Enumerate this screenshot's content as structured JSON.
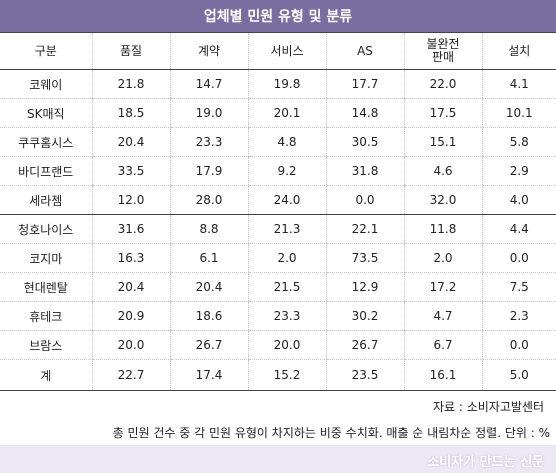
{
  "title": "업체별 민원 유형 및 분류",
  "headers": [
    "구분",
    "품질",
    "계약",
    "서비스",
    "AS",
    "불완전\n판매",
    "설치"
  ],
  "rows": [
    [
      "코웨이",
      "21.8",
      "14.7",
      "19.8",
      "17.7",
      "22.0",
      "4.1"
    ],
    [
      "SK매직",
      "18.5",
      "19.0",
      "20.1",
      "14.8",
      "17.5",
      "10.1"
    ],
    [
      "쿠쿠홈시스",
      "20.4",
      "23.3",
      "4.8",
      "30.5",
      "15.1",
      "5.8"
    ],
    [
      "바디프랜드",
      "33.5",
      "17.9",
      "9.2",
      "31.8",
      "4.6",
      "2.9"
    ],
    [
      "세라젬",
      "12.0",
      "28.0",
      "24.0",
      "0.0",
      "32.0",
      "4.0"
    ],
    [
      "청호나이스",
      "31.6",
      "8.8",
      "21.3",
      "22.1",
      "11.8",
      "4.4"
    ],
    [
      "코지마",
      "16.3",
      "6.1",
      "2.0",
      "73.5",
      "2.0",
      "0.0"
    ],
    [
      "현대렌탈",
      "20.4",
      "20.4",
      "21.5",
      "12.9",
      "17.2",
      "7.5"
    ],
    [
      "휴테크",
      "20.9",
      "18.6",
      "23.3",
      "30.2",
      "4.7",
      "2.3"
    ],
    [
      "브람스",
      "20.0",
      "26.7",
      "20.0",
      "26.7",
      "6.7",
      "0.0"
    ]
  ],
  "total": [
    "계",
    "22.7",
    "17.4",
    "15.2",
    "23.5",
    "16.1",
    "5.0"
  ],
  "source": "자료 : 소비자고발센터",
  "note": "총 민원 건수 중 각 민원 유형이 차지하는 비중 수치화. 매출 순 내림차순 정렬. 단위 : %",
  "credit": "소비자가 만드는 신문"
}
